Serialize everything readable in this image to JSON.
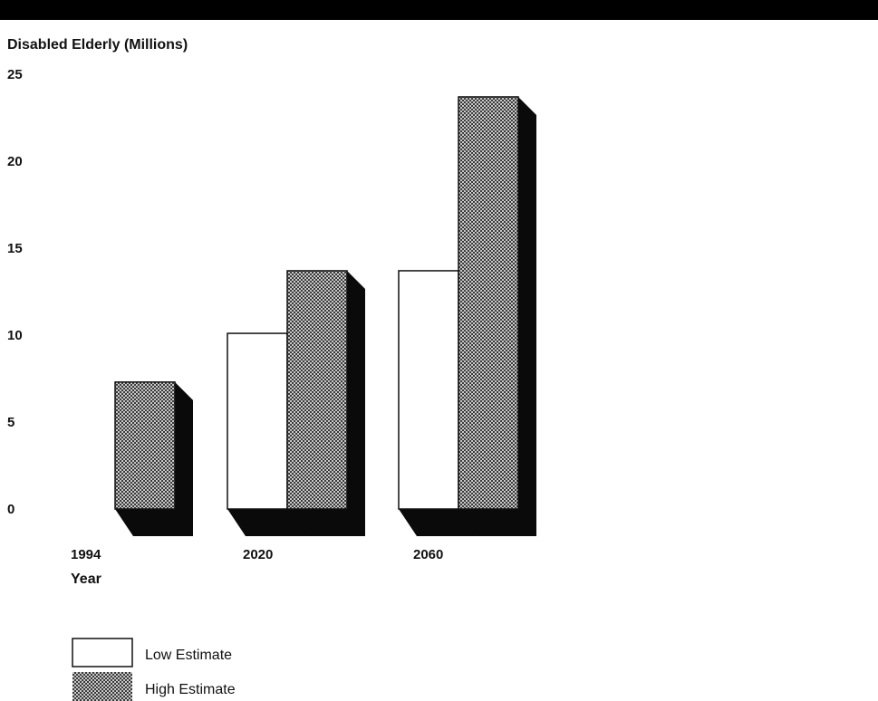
{
  "chart_data": {
    "type": "bar",
    "title": "",
    "ylabel": "Disabled Elderly (Millions)",
    "xlabel": "Year",
    "categories": [
      "1994",
      "2020",
      "2060"
    ],
    "series": [
      {
        "name": "Low Estimate",
        "values": [
          null,
          10.1,
          13.7
        ],
        "fill": "white"
      },
      {
        "name": "High Estimate",
        "values": [
          7.3,
          13.7,
          23.7
        ],
        "fill": "stipple"
      }
    ],
    "ylim": [
      0,
      25
    ],
    "yticks": [
      "0",
      "5",
      "10",
      "15",
      "20",
      "25"
    ],
    "grid": false,
    "legend_position": "bottom-left",
    "colors": {
      "top_band": "#000000",
      "shade": "#0a0a0a",
      "outline": "#111111",
      "stipple_dark": "#3a3a3a",
      "stipple_light": "#c8c8c8"
    }
  }
}
